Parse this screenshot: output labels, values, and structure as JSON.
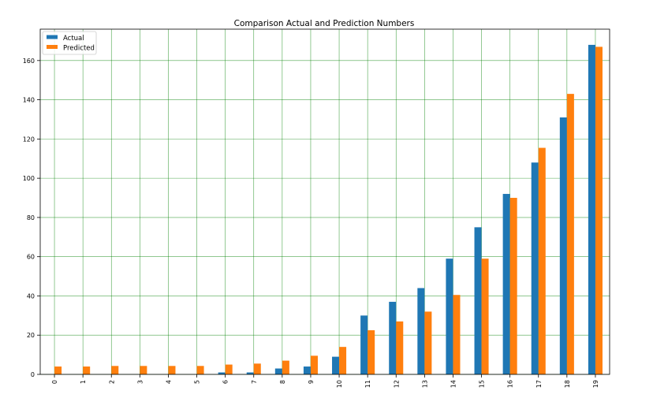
{
  "chart_data": {
    "type": "bar",
    "title": "Comparison Actual and Prediction Numbers",
    "xlabel": "",
    "ylabel": "",
    "categories": [
      "0",
      "1",
      "2",
      "3",
      "4",
      "5",
      "6",
      "7",
      "8",
      "9",
      "10",
      "11",
      "12",
      "13",
      "14",
      "15",
      "16",
      "17",
      "18",
      "19"
    ],
    "series": [
      {
        "name": "Actual",
        "color": "#1f77b4",
        "values": [
          0,
          0,
          0,
          0,
          0,
          0,
          1,
          1,
          3,
          4,
          9,
          30,
          37,
          44,
          59,
          75,
          92,
          108,
          131,
          168
        ]
      },
      {
        "name": "Predicted",
        "color": "#ff7f0e",
        "values": [
          4,
          4,
          4.3,
          4.3,
          4.3,
          4.3,
          5,
          5.5,
          7,
          9.5,
          14,
          22.5,
          27,
          32,
          40.5,
          59,
          90,
          115.5,
          143,
          167
        ]
      }
    ],
    "ylim": [
      0,
      176
    ],
    "yticks": [
      0,
      20,
      40,
      60,
      80,
      100,
      120,
      140,
      160
    ],
    "grid": true,
    "grid_color": "#008000",
    "legend_position": "top-left",
    "x_tick_rotation": "vertical"
  }
}
